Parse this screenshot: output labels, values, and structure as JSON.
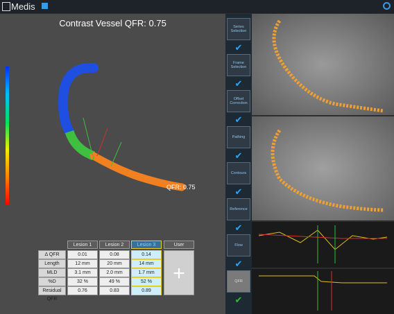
{
  "header": {
    "title": "Medis"
  },
  "qfr_panel": {
    "title": "Contrast Vessel QFR: 0.75",
    "vessel_label": "QFR: 0.75"
  },
  "table": {
    "columns": [
      "Lesion 1",
      "Lesion 2",
      "Lesion 3",
      "User"
    ],
    "row_labels": [
      "Δ QFR",
      "Length",
      "MLD",
      "%D Stenosis",
      "Residual QFR"
    ],
    "rows": [
      [
        "0.01",
        "0.08",
        "0.14"
      ],
      [
        "12 mm",
        "20 mm",
        "14 mm"
      ],
      [
        "3.1 mm",
        "2.0 mm",
        "1.7 mm"
      ],
      [
        "32 %",
        "49 %",
        "52 %"
      ],
      [
        "0.76",
        "0.83",
        "0.89"
      ]
    ],
    "add_button": "+"
  },
  "workflow": {
    "steps": [
      "Series Selection",
      "Frame Selection",
      "Offset Correction",
      "Pathing",
      "Contours",
      "Reference",
      "Flow",
      "QFR"
    ]
  }
}
